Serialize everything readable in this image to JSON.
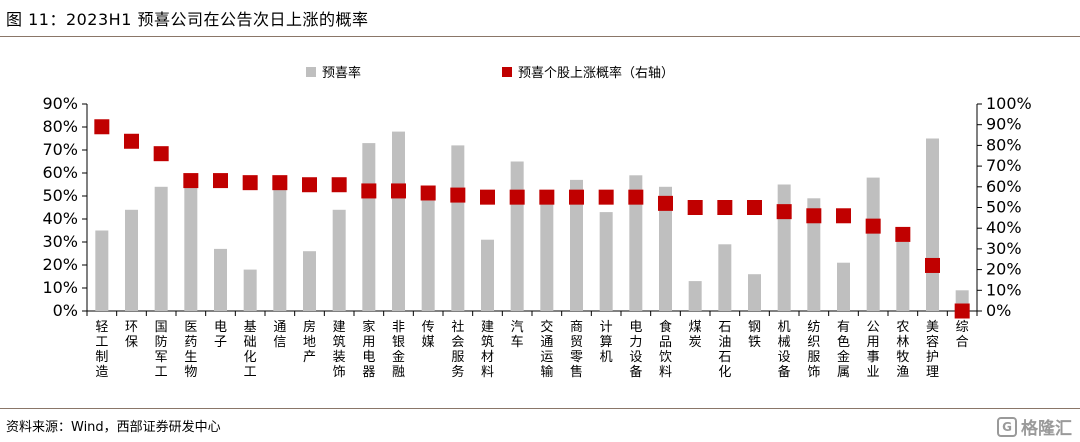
{
  "header": {
    "title": "图 11：2023H1 预喜公司在公告次日上涨的概率"
  },
  "footer": {
    "source": "资料来源：Wind，西部证券研发中心",
    "watermark": "格隆汇",
    "watermark_icon": "G"
  },
  "chart_data": {
    "type": "bar",
    "categories": [
      "轻工制造",
      "环保",
      "国防军工",
      "医药生物",
      "电子",
      "基础化工",
      "通信",
      "房地产",
      "建筑装饰",
      "家用电器",
      "非银金融",
      "传媒",
      "社会服务",
      "建筑材料",
      "汽车",
      "交通运输",
      "商贸零售",
      "计算机",
      "电力设备",
      "食品饮料",
      "煤炭",
      "石油石化",
      "钢铁",
      "机械设备",
      "纺织服饰",
      "有色金属",
      "公用事业",
      "农林牧渔",
      "美容护理",
      "综合"
    ],
    "series": [
      {
        "name": "预喜率",
        "type": "bar",
        "axis": "left",
        "color": "#bfbfbf",
        "values": [
          35,
          44,
          54,
          57,
          27,
          18,
          53,
          26,
          44,
          73,
          78,
          48,
          72,
          31,
          65,
          50,
          57,
          43,
          59,
          54,
          13,
          29,
          16,
          55,
          49,
          21,
          58,
          30,
          75,
          9
        ]
      },
      {
        "name": "预喜个股上涨概率（右轴）",
        "type": "scatter",
        "axis": "right",
        "color": "#c00000",
        "values": [
          89,
          82,
          76,
          63,
          63,
          62,
          62,
          61,
          61,
          58,
          58,
          57,
          56,
          55,
          55,
          55,
          55,
          55,
          55,
          52,
          50,
          50,
          50,
          48,
          46,
          46,
          41,
          37,
          22,
          0
        ]
      }
    ],
    "y_left": {
      "min": 0,
      "max": 90,
      "ticks": [
        "0%",
        "10%",
        "20%",
        "30%",
        "40%",
        "50%",
        "60%",
        "70%",
        "80%",
        "90%"
      ]
    },
    "y_right": {
      "min": 0,
      "max": 100,
      "ticks": [
        "0%",
        "10%",
        "20%",
        "30%",
        "40%",
        "50%",
        "60%",
        "70%",
        "80%",
        "90%",
        "100%"
      ]
    },
    "grid": false,
    "legend": "top-center"
  }
}
